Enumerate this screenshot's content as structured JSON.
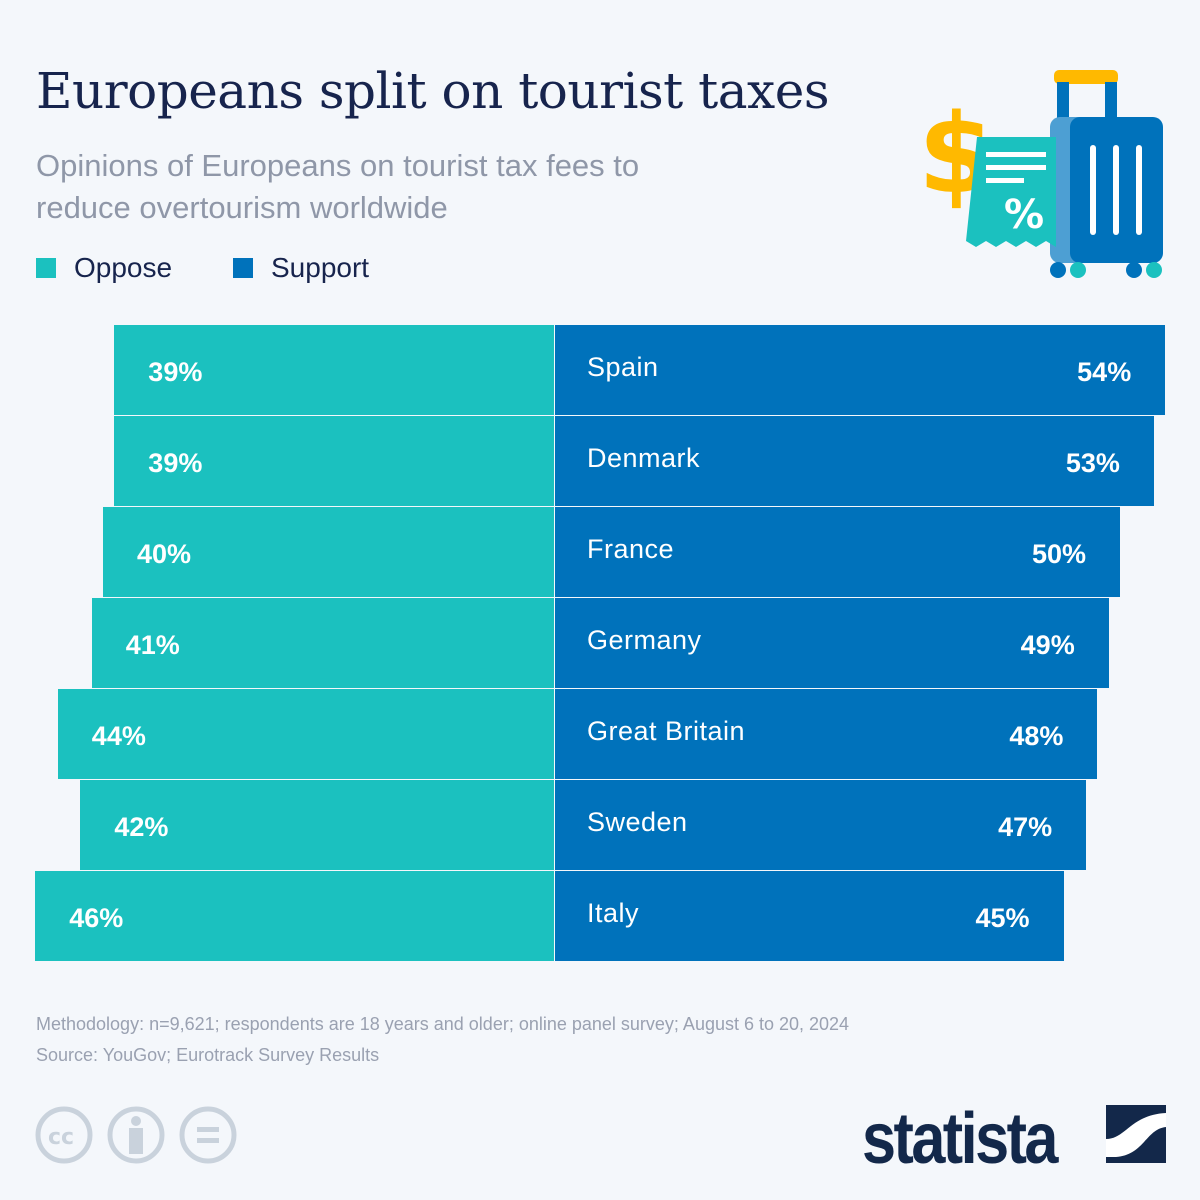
{
  "title": "Europeans split on tourist taxes",
  "subtitle": "Opinions of Europeans on tourist tax fees to reduce overtourism worldwide",
  "legend": [
    {
      "label": "Oppose",
      "color": "#1bc1bf"
    },
    {
      "label": "Support",
      "color": "#0072bb"
    }
  ],
  "chart_data": {
    "type": "bar",
    "orientation": "horizontal-diverging",
    "categories": [
      "Spain",
      "Denmark",
      "France",
      "Germany",
      "Great Britain",
      "Sweden",
      "Italy"
    ],
    "series": [
      {
        "name": "Oppose",
        "values": [
          39,
          39,
          40,
          41,
          44,
          42,
          46
        ],
        "labels": [
          "39%",
          "39%",
          "40%",
          "41%",
          "44%",
          "42%",
          "46%"
        ]
      },
      {
        "name": "Support",
        "values": [
          54,
          53,
          50,
          49,
          48,
          47,
          45
        ],
        "labels": [
          "54%",
          "53%",
          "50%",
          "49%",
          "48%",
          "47%",
          "45%"
        ]
      }
    ],
    "unit": "%"
  },
  "footer": {
    "methodology": "Methodology: n=9,621; respondents are 18 years and older; online panel survey; August 6 to 20, 2024",
    "source": "Source: YouGov; Eurotrack Survey Results"
  },
  "brand": "statista"
}
